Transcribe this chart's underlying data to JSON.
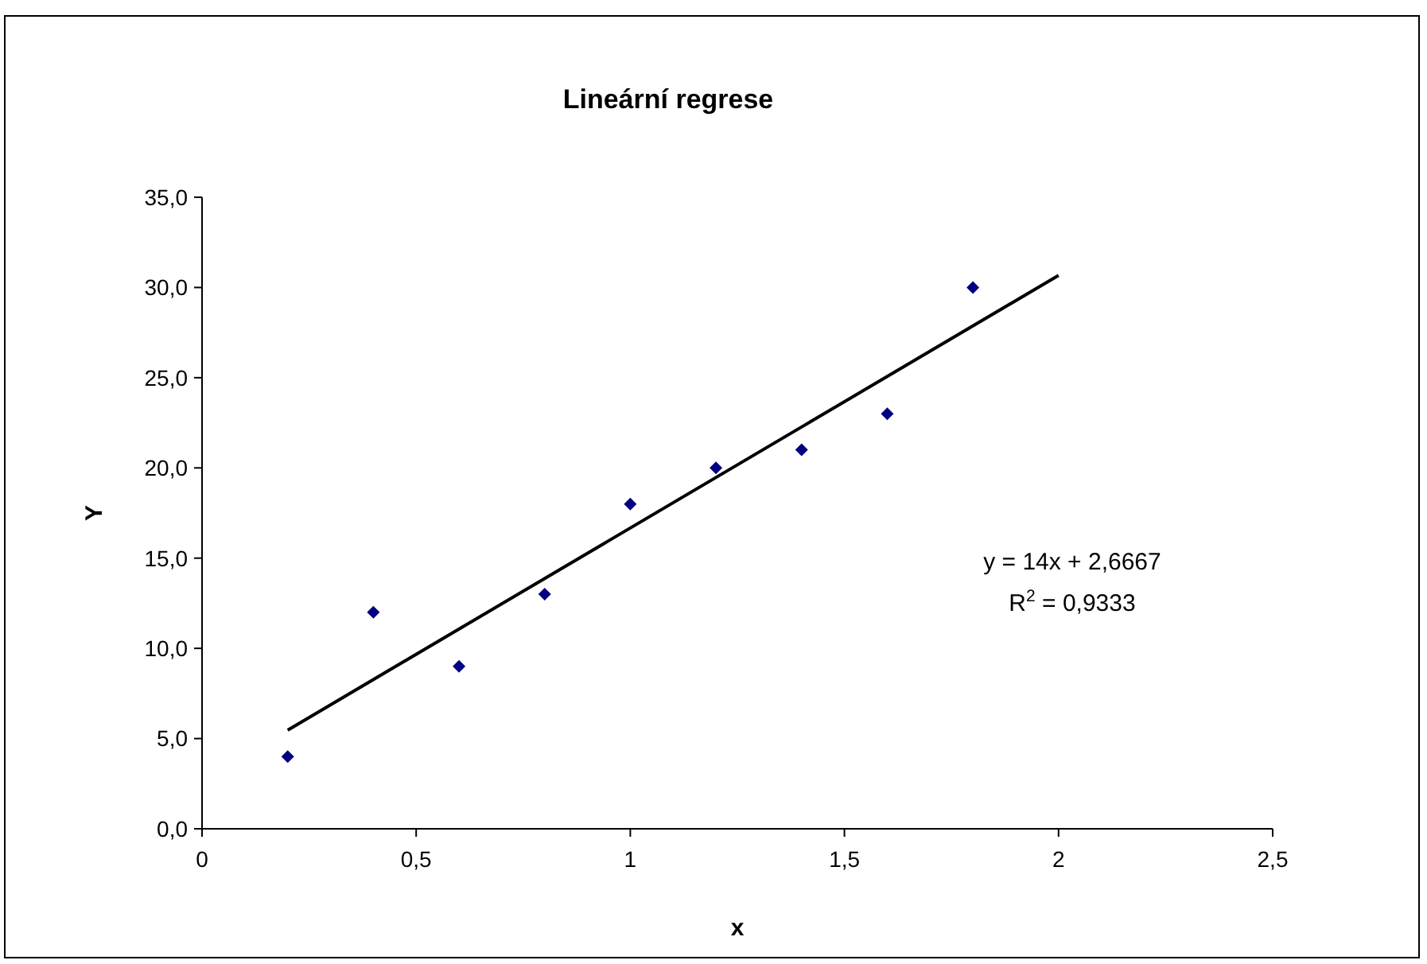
{
  "chart_data": {
    "type": "scatter",
    "title": "Lineární regrese",
    "xlabel": "x",
    "ylabel": "Y",
    "xlim": [
      0,
      2.5
    ],
    "xticks": [
      0,
      {
        "value": 0.5,
        "label": "0,5"
      },
      1,
      {
        "value": 1.5,
        "label": "1,5"
      },
      2,
      {
        "value": 2.5,
        "label": "2,5"
      }
    ],
    "ylim": [
      0,
      35
    ],
    "yticks": [
      {
        "value": 0,
        "label": "0,0"
      },
      {
        "value": 5,
        "label": "5,0"
      },
      {
        "value": 10,
        "label": "10,0"
      },
      {
        "value": 15,
        "label": "15,0"
      },
      {
        "value": 20,
        "label": "20,0"
      },
      {
        "value": 25,
        "label": "25,0"
      },
      {
        "value": 30,
        "label": "30,0"
      },
      {
        "value": 35,
        "label": "35,0"
      }
    ],
    "grid": false,
    "marker": "diamond",
    "series": [
      {
        "color": "#000080",
        "x": [
          0.2,
          0.4,
          0.6,
          0.8,
          1.0,
          1.2,
          1.4,
          1.6,
          1.8
        ],
        "values": [
          4,
          12,
          9,
          13,
          18,
          20,
          21,
          23,
          30
        ]
      },
      {
        "type": "line",
        "color": "#000000",
        "marker": "none",
        "line_style": "solid",
        "x": [
          0.2,
          2.0
        ],
        "values": [
          5.47,
          30.67
        ]
      }
    ],
    "annotations": [
      "y = 14x + 2,6667",
      "R$^{2}$ = 0,9333"
    ]
  }
}
